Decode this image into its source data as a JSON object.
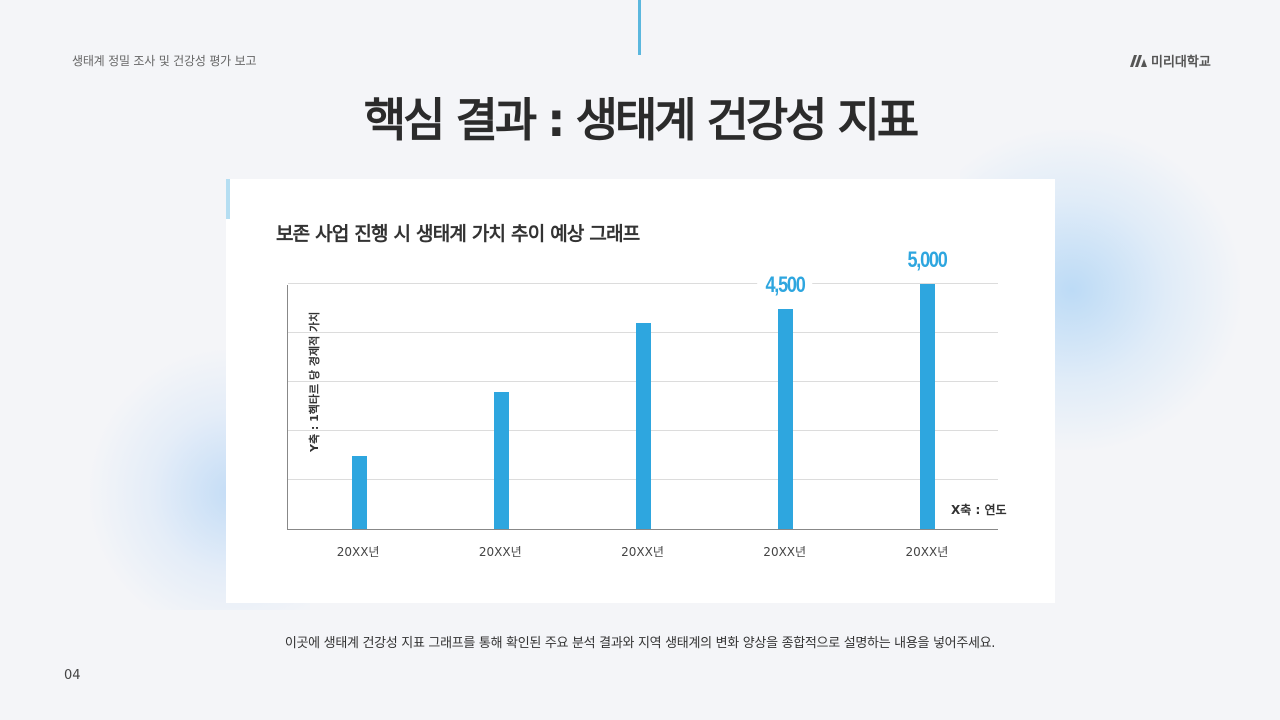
{
  "header": {
    "subtitle": "생태계 정밀 조사 및 건강성 평가 보고",
    "logo_text": "미리대학교",
    "logo_icon": "brand-mark-icon"
  },
  "title": "핵심 결과 : 생태계 건강성 지표",
  "chart_card": {
    "title": "보존 사업 진행 시 생태계 가치 추이 예상 그래프"
  },
  "chart_data": {
    "type": "bar",
    "title": "보존 사업 진행 시 생태계 가치 추이 예상 그래프",
    "categories": [
      "20XX년",
      "20XX년",
      "20XX년",
      "20XX년",
      "20XX년"
    ],
    "values": [
      1500,
      2800,
      4200,
      4500,
      5000
    ],
    "data_labels": [
      "",
      "",
      "",
      "4,500",
      "5,000"
    ],
    "xlabel": "X축 : 연도",
    "ylabel": "Y축 : 1헥타르 당 경제적 가치",
    "ylim": [
      0,
      5000
    ],
    "grid": true,
    "gridline_step": 1000,
    "bar_color": "#2ea6df"
  },
  "description": "이곳에 생태계 건강성 지표 그래프를 통해 확인된 주요 분석 결과와 지역 생태계의 변화 양상을 종합적으로 설명하는 내용을 넣어주세요.",
  "page_number": "04",
  "colors": {
    "accent": "#2ea6df",
    "top_line": "#5bb7de",
    "background": "#f4f5f8",
    "card": "#ffffff"
  }
}
